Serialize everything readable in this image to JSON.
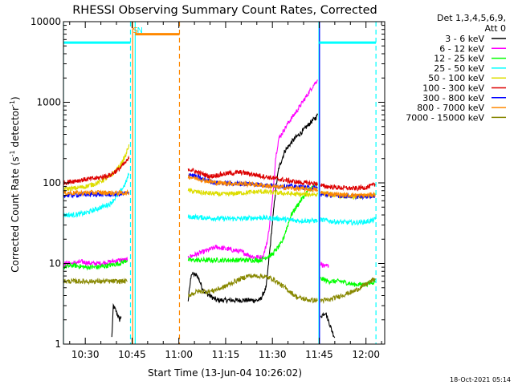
{
  "chart_data": {
    "type": "line",
    "title": "RHESSI Observing Summary Count Rates, Corrected",
    "xlabel": "Start Time (13-Jun-04 10:26:02)",
    "ylabel_main": "Corrected Count Rate (s",
    "ylabel_sup1": "-1",
    "ylabel_mid": " detector",
    "ylabel_sup2": "-1",
    "ylabel_end": ")",
    "y_scale": "log",
    "ylim": [
      1,
      10000
    ],
    "xlim_minutes": [
      623,
      726
    ],
    "x_ticks": [
      {
        "min": 630,
        "label": "10:30"
      },
      {
        "min": 645,
        "label": "10:45"
      },
      {
        "min": 660,
        "label": "11:00"
      },
      {
        "min": 675,
        "label": "11:15"
      },
      {
        "min": 690,
        "label": "11:30"
      },
      {
        "min": 705,
        "label": "11:45"
      },
      {
        "min": 720,
        "label": "12:00"
      }
    ],
    "y_ticks": [
      {
        "v": 1,
        "label": "1"
      },
      {
        "v": 10,
        "label": "10"
      },
      {
        "v": 100,
        "label": "100"
      },
      {
        "v": 1000,
        "label": "1000"
      },
      {
        "v": 10000,
        "label": "10000"
      }
    ],
    "legend": {
      "header1": "Det 1,3,4,5,6,9,",
      "header2": "Att 0",
      "entries": [
        {
          "label": "3 - 6 keV",
          "color": "#000000"
        },
        {
          "label": "6 - 12 keV",
          "color": "#ff00ff"
        },
        {
          "label": "12 - 25 keV",
          "color": "#00ff00"
        },
        {
          "label": "25 - 50 keV",
          "color": "#00ffff"
        },
        {
          "label": "50 - 100 keV",
          "color": "#dddd00"
        },
        {
          "label": "100 - 300 keV",
          "color": "#dd0000"
        },
        {
          "label": "300 - 800 keV",
          "color": "#0000ff"
        },
        {
          "label": "800 - 7000 keV",
          "color": "#ff8800"
        },
        {
          "label": "7000 - 15000 keV",
          "color": "#888800"
        }
      ]
    },
    "flags": [
      {
        "label": "S",
        "min": 645.0,
        "color": "#ff8800"
      },
      {
        "label": "N",
        "min": 646.3,
        "color": "#00ffff"
      }
    ],
    "bars": [
      {
        "name": "saa-bar",
        "from": 646.0,
        "to": 660.2,
        "y": 7000,
        "color": "#ff8800"
      },
      {
        "name": "night-bar-1",
        "from": 623.0,
        "to": 644.5,
        "y": 5500,
        "color": "#00ffff"
      },
      {
        "name": "night-bar-2",
        "from": 705.0,
        "to": 723.2,
        "y": 5500,
        "color": "#00ffff"
      }
    ],
    "vlines": [
      {
        "name": "night-start-1",
        "min": 623.0,
        "color": "#00ffff",
        "dash": false
      },
      {
        "name": "night-end-1",
        "min": 644.5,
        "color": "#00ffff",
        "dash": true
      },
      {
        "name": "saa-start",
        "min": 645.2,
        "color": "#ff8800",
        "dash": false
      },
      {
        "name": "night-start-2",
        "min": 646.0,
        "color": "#00ffff",
        "dash": false
      },
      {
        "name": "saa-end",
        "min": 660.2,
        "color": "#ff8800",
        "dash": true
      },
      {
        "name": "night-end-2",
        "min": 704.9,
        "color": "#00ffff",
        "dash": false
      },
      {
        "name": "attenuator-line",
        "min": 705.1,
        "color": "#0000ff",
        "dash": false
      },
      {
        "name": "night-start-3",
        "min": 723.2,
        "color": "#00ffff",
        "dash": true
      }
    ],
    "series": [
      {
        "name": "3 - 6 keV",
        "color": "#000000",
        "segments": [
          [
            [
              638.5,
              1.2
            ],
            [
              639.0,
              3.0
            ],
            [
              640.0,
              2.5
            ],
            [
              641.0,
              2.0
            ],
            [
              641.5,
              2.2
            ]
          ],
          [
            [
              663.0,
              3.5
            ],
            [
              664.0,
              7.5
            ],
            [
              666.0,
              7.0
            ],
            [
              668.0,
              4.5
            ],
            [
              672.0,
              3.5
            ],
            [
              680.0,
              3.5
            ],
            [
              686.0,
              3.5
            ],
            [
              688.0,
              5.0
            ],
            [
              689.5,
              20.0
            ],
            [
              691.0,
              80.0
            ],
            [
              692.0,
              150.0
            ],
            [
              694.0,
              250.0
            ],
            [
              697.0,
              350.0
            ],
            [
              700.0,
              450.0
            ],
            [
              702.0,
              550.0
            ],
            [
              704.0,
              650.0
            ],
            [
              704.5,
              700.0
            ]
          ],
          [
            [
              705.5,
              2.2
            ],
            [
              707.0,
              2.5
            ],
            [
              709.0,
              1.5
            ],
            [
              710.0,
              1.2
            ]
          ]
        ]
      },
      {
        "name": "6 - 12 keV",
        "color": "#ff00ff",
        "segments": [
          [
            [
              623.0,
              10.0
            ],
            [
              626.0,
              10.0
            ],
            [
              629.0,
              10.5
            ],
            [
              632.0,
              10.0
            ],
            [
              635.0,
              10.0
            ],
            [
              638.0,
              10.5
            ],
            [
              641.0,
              11.0
            ],
            [
              643.5,
              11.0
            ]
          ],
          [
            [
              663.0,
              12.0
            ],
            [
              668.0,
              14.0
            ],
            [
              672.0,
              16.0
            ],
            [
              676.0,
              15.0
            ],
            [
              680.0,
              14.0
            ],
            [
              684.0,
              12.0
            ],
            [
              687.0,
              12.0
            ],
            [
              688.5,
              20.0
            ],
            [
              690.0,
              60.0
            ],
            [
              691.0,
              200.0
            ],
            [
              692.0,
              350.0
            ],
            [
              695.0,
              550.0
            ],
            [
              698.0,
              800.0
            ],
            [
              701.0,
              1200.0
            ],
            [
              703.0,
              1600.0
            ],
            [
              704.5,
              1900.0
            ]
          ],
          [
            [
              705.5,
              10.0
            ],
            [
              707.0,
              9.0
            ],
            [
              708.0,
              9.5
            ]
          ]
        ]
      },
      {
        "name": "12 - 25 keV",
        "color": "#00ff00",
        "segments": [
          [
            [
              623.0,
              9.0
            ],
            [
              626.0,
              9.5
            ],
            [
              630.0,
              9.0
            ],
            [
              634.0,
              9.0
            ],
            [
              638.0,
              9.5
            ],
            [
              641.0,
              10.0
            ],
            [
              643.5,
              11.0
            ]
          ],
          [
            [
              663.0,
              11.0
            ],
            [
              668.0,
              11.0
            ],
            [
              674.0,
              11.0
            ],
            [
              680.0,
              11.0
            ],
            [
              686.0,
              11.0
            ],
            [
              690.0,
              13.0
            ],
            [
              693.0,
              18.0
            ],
            [
              696.0,
              40.0
            ],
            [
              699.0,
              60.0
            ],
            [
              702.0,
              85.0
            ],
            [
              704.5,
              95.0
            ]
          ],
          [
            [
              705.5,
              6.5
            ],
            [
              708.0,
              6.0
            ],
            [
              712.0,
              6.0
            ],
            [
              716.0,
              5.5
            ],
            [
              720.0,
              5.5
            ],
            [
              723.0,
              6.0
            ]
          ]
        ]
      },
      {
        "name": "25 - 50 keV",
        "color": "#00ffff",
        "segments": [
          [
            [
              623.0,
              40.0
            ],
            [
              626.0,
              40.0
            ],
            [
              630.0,
              42.0
            ],
            [
              634.0,
              48.0
            ],
            [
              638.0,
              55.0
            ],
            [
              641.0,
              75.0
            ],
            [
              643.0,
              100.0
            ],
            [
              644.0,
              130.0
            ]
          ],
          [
            [
              663.0,
              38.0
            ],
            [
              668.0,
              37.0
            ],
            [
              674.0,
              36.0
            ],
            [
              680.0,
              36.0
            ],
            [
              686.0,
              37.0
            ],
            [
              692.0,
              36.0
            ],
            [
              698.0,
              34.0
            ],
            [
              704.5,
              34.0
            ]
          ],
          [
            [
              705.5,
              35.0
            ],
            [
              710.0,
              33.0
            ],
            [
              716.0,
              32.0
            ],
            [
              720.0,
              33.0
            ],
            [
              723.0,
              35.0
            ]
          ]
        ]
      },
      {
        "name": "50 - 100 keV",
        "color": "#dddd00",
        "segments": [
          [
            [
              623.0,
              85.0
            ],
            [
              626.0,
              85.0
            ],
            [
              630.0,
              90.0
            ],
            [
              634.0,
              100.0
            ],
            [
              638.0,
              120.0
            ],
            [
              641.0,
              160.0
            ],
            [
              643.0,
              220.0
            ],
            [
              644.0,
              300.0
            ]
          ],
          [
            [
              663.0,
              80.0
            ],
            [
              668.0,
              75.0
            ],
            [
              674.0,
              72.0
            ],
            [
              680.0,
              75.0
            ],
            [
              686.0,
              78.0
            ],
            [
              692.0,
              75.0
            ],
            [
              698.0,
              72.0
            ],
            [
              704.5,
              72.0
            ]
          ],
          [
            [
              705.5,
              75.0
            ],
            [
              710.0,
              70.0
            ],
            [
              716.0,
              66.0
            ],
            [
              720.0,
              68.0
            ],
            [
              723.0,
              72.0
            ]
          ]
        ]
      },
      {
        "name": "100 - 300 keV",
        "color": "#dd0000",
        "segments": [
          [
            [
              623.0,
              100.0
            ],
            [
              626.0,
              105.0
            ],
            [
              630.0,
              110.0
            ],
            [
              634.0,
              115.0
            ],
            [
              638.0,
              125.0
            ],
            [
              641.0,
              150.0
            ],
            [
              643.0,
              180.0
            ],
            [
              644.0,
              200.0
            ]
          ],
          [
            [
              663.0,
              150.0
            ],
            [
              666.0,
              135.0
            ],
            [
              670.0,
              120.0
            ],
            [
              675.0,
              130.0
            ],
            [
              680.0,
              135.0
            ],
            [
              685.0,
              125.0
            ],
            [
              690.0,
              115.0
            ],
            [
              696.0,
              105.0
            ],
            [
              700.0,
              100.0
            ],
            [
              704.5,
              98.0
            ]
          ],
          [
            [
              705.5,
              92.0
            ],
            [
              710.0,
              88.0
            ],
            [
              716.0,
              85.0
            ],
            [
              720.0,
              88.0
            ],
            [
              723.0,
              95.0
            ]
          ]
        ]
      },
      {
        "name": "300 - 800 keV",
        "color": "#0000ff",
        "segments": [
          [
            [
              623.0,
              70.0
            ],
            [
              630.0,
              72.0
            ],
            [
              636.0,
              72.0
            ],
            [
              640.0,
              72.0
            ],
            [
              644.0,
              74.0
            ]
          ],
          [
            [
              663.0,
              130.0
            ],
            [
              668.0,
              110.0
            ],
            [
              672.0,
              100.0
            ],
            [
              678.0,
              98.0
            ],
            [
              684.0,
              97.0
            ],
            [
              690.0,
              92.0
            ],
            [
              696.0,
              90.0
            ],
            [
              700.0,
              88.0
            ],
            [
              704.5,
              86.0
            ]
          ],
          [
            [
              705.5,
              72.0
            ],
            [
              710.0,
              70.0
            ],
            [
              716.0,
              68.0
            ],
            [
              720.0,
              68.0
            ],
            [
              723.0,
              70.0
            ]
          ]
        ]
      },
      {
        "name": "800 - 7000 keV",
        "color": "#ff8800",
        "segments": [
          [
            [
              623.0,
              75.0
            ],
            [
              628.0,
              75.0
            ],
            [
              634.0,
              76.0
            ],
            [
              640.0,
              75.0
            ],
            [
              644.0,
              75.0
            ]
          ],
          [
            [
              663.0,
              120.0
            ],
            [
              668.0,
              108.0
            ],
            [
              672.0,
              100.0
            ],
            [
              678.0,
              98.0
            ],
            [
              684.0,
              96.0
            ],
            [
              690.0,
              90.0
            ],
            [
              696.0,
              86.0
            ],
            [
              700.0,
              84.0
            ],
            [
              704.5,
              82.0
            ]
          ],
          [
            [
              705.5,
              75.0
            ],
            [
              710.0,
              72.0
            ],
            [
              716.0,
              70.0
            ],
            [
              720.0,
              70.0
            ],
            [
              723.0,
              72.0
            ]
          ]
        ]
      },
      {
        "name": "7000 - 15000 keV",
        "color": "#888800",
        "segments": [
          [
            [
              623.0,
              6.0
            ],
            [
              626.0,
              6.0
            ],
            [
              630.0,
              6.0
            ],
            [
              634.0,
              6.0
            ],
            [
              638.0,
              6.0
            ],
            [
              641.0,
              6.0
            ],
            [
              643.5,
              6.0
            ]
          ],
          [
            [
              663.0,
              4.0
            ],
            [
              666.0,
              4.5
            ],
            [
              670.0,
              4.5
            ],
            [
              674.0,
              5.0
            ],
            [
              678.0,
              6.0
            ],
            [
              682.0,
              7.0
            ],
            [
              686.0,
              7.0
            ],
            [
              690.0,
              6.5
            ],
            [
              694.0,
              5.0
            ],
            [
              698.0,
              3.8
            ],
            [
              702.0,
              3.5
            ],
            [
              704.5,
              3.5
            ]
          ],
          [
            [
              705.5,
              3.5
            ],
            [
              708.0,
              3.5
            ],
            [
              712.0,
              4.0
            ],
            [
              716.0,
              4.5
            ],
            [
              720.0,
              5.5
            ],
            [
              723.0,
              6.5
            ]
          ]
        ]
      }
    ],
    "grid": false,
    "legend_position": "right"
  },
  "timestamp": "18-Oct-2021 05:14"
}
